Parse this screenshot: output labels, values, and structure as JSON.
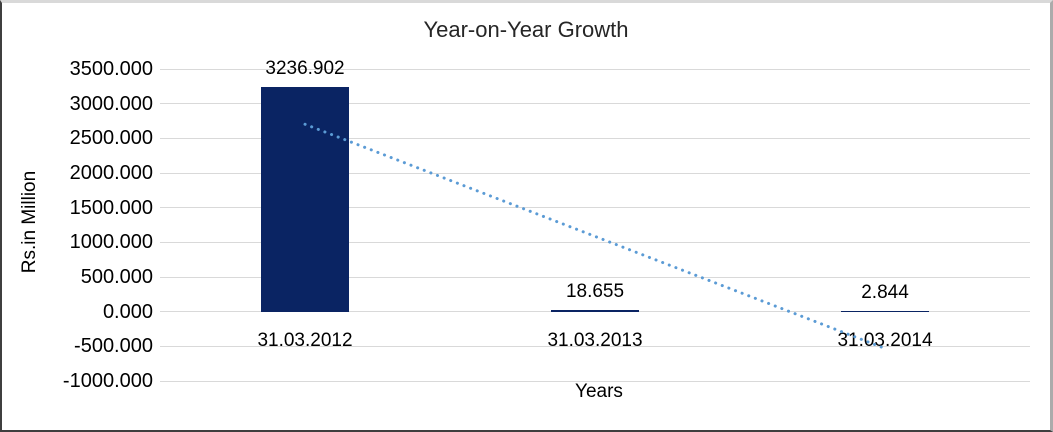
{
  "chart_data": {
    "type": "bar",
    "title": "Year-on-Year Growth",
    "xlabel": "Years",
    "ylabel": "Rs.in Million",
    "categories": [
      "31.03.2012",
      "31.03.2013",
      "31.03.2014"
    ],
    "values": [
      3236.902,
      18.655,
      2.844
    ],
    "data_labels": [
      "3236.902",
      "18.655",
      "2.844"
    ],
    "ytick_labels": [
      "3500.000",
      "3000.000",
      "2500.000",
      "2000.000",
      "1500.000",
      "1000.000",
      "500.000",
      "0.000",
      "-500.000",
      "-1000.000"
    ],
    "ylim": [
      -1000,
      3500
    ],
    "ytick_step": 500,
    "grid": true,
    "legend": "none",
    "trendline": {
      "type": "linear",
      "style": "dotted"
    },
    "colors": {
      "bar": "#0a2463",
      "trendline": "#5b9bd5",
      "gridline": "#d9d9d9",
      "text": "#000000",
      "title": "#262626",
      "background": "#ffffff"
    }
  }
}
